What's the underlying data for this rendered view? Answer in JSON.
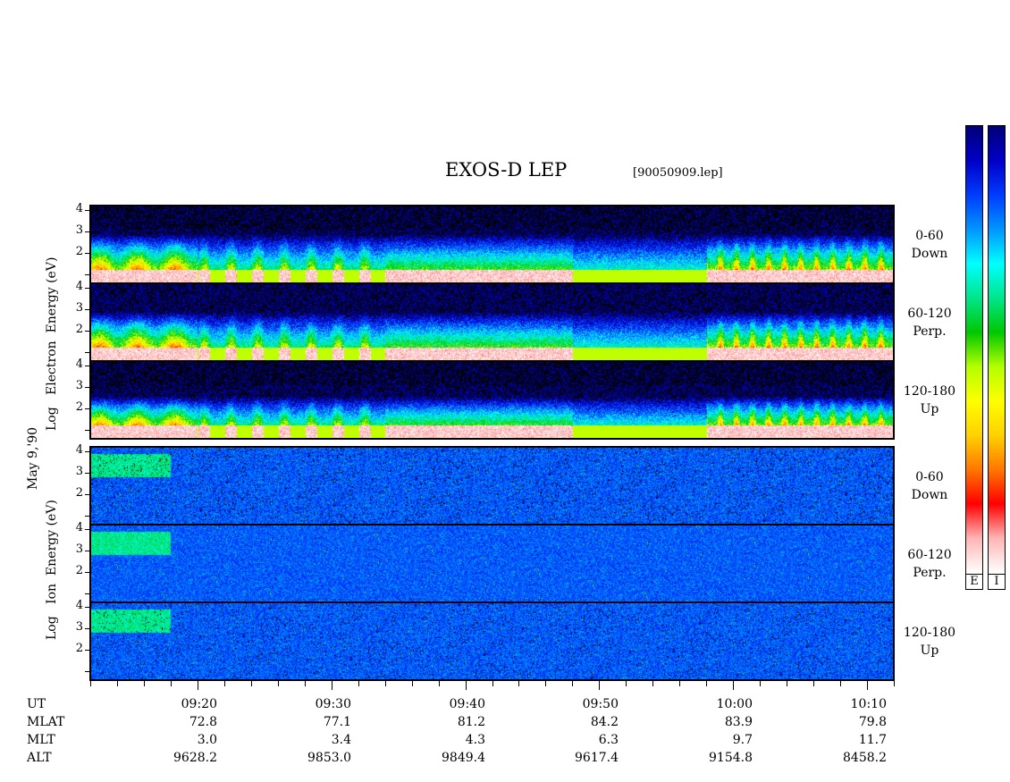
{
  "header": {
    "title": "EXOS-D LEP",
    "file": "[90050909.lep]"
  },
  "y_axis": {
    "date_label": "May  9,'90",
    "electron_label": [
      "Log",
      "Electron",
      "Energy",
      "(eV)"
    ],
    "ion_label": [
      "Log",
      "Ion",
      "Energy",
      "(eV)"
    ],
    "tick_labels": [
      "1",
      "2",
      "3",
      "4"
    ]
  },
  "panels": [
    {
      "species": "Electron",
      "pitch_range": "0-60",
      "direction": "Down"
    },
    {
      "species": "Electron",
      "pitch_range": "60-120",
      "direction": "Perp."
    },
    {
      "species": "Electron",
      "pitch_range": "120-180",
      "direction": "Up"
    },
    {
      "species": "Ion",
      "pitch_range": "0-60",
      "direction": "Down"
    },
    {
      "species": "Ion",
      "pitch_range": "60-120",
      "direction": "Perp."
    },
    {
      "species": "Ion",
      "pitch_range": "120-180",
      "direction": "Up"
    }
  ],
  "ephemeris": {
    "row_labels": [
      "UT",
      "MLAT",
      "MLT",
      "ALT"
    ],
    "columns": [
      {
        "UT": "09:20",
        "MLAT": "72.8",
        "MLT": "3.0",
        "ALT": "9628.2"
      },
      {
        "UT": "09:30",
        "MLAT": "77.1",
        "MLT": "3.4",
        "ALT": "9853.0"
      },
      {
        "UT": "09:40",
        "MLAT": "81.2",
        "MLT": "4.3",
        "ALT": "9849.4"
      },
      {
        "UT": "09:50",
        "MLAT": "84.2",
        "MLT": "6.3",
        "ALT": "9617.4"
      },
      {
        "UT": "10:00",
        "MLAT": "83.9",
        "MLT": "9.7",
        "ALT": "9154.8"
      },
      {
        "UT": "10:10",
        "MLAT": "79.8",
        "MLT": "11.7",
        "ALT": "8458.2"
      }
    ]
  },
  "colorbar": {
    "labels": [
      "E",
      "I"
    ]
  },
  "chart_data": {
    "type": "heatmap",
    "title": "EXOS-D LEP",
    "x": {
      "label": "UT",
      "start": "09:12",
      "end": "10:12",
      "ticks": [
        "09:20",
        "09:30",
        "09:40",
        "09:50",
        "10:00",
        "10:10"
      ]
    },
    "y": {
      "ylim": [
        0.6,
        4.2
      ],
      "ticks": [
        1,
        2,
        3,
        4
      ],
      "scale": "log energy (eV)"
    },
    "electron_series": [
      {
        "label": "0-60 Down",
        "intensity": "high",
        "floor": 0.55
      },
      {
        "label": "60-120 Perp.",
        "intensity": "high",
        "floor": 0.55
      },
      {
        "label": "120-180 Up",
        "intensity": "high",
        "floor": 0.45
      }
    ],
    "ion_series": [
      {
        "label": "0-60 Down",
        "intensity": "low"
      },
      {
        "label": "60-120 Perp.",
        "intensity": "low"
      },
      {
        "label": "120-180 Up",
        "intensity": "low"
      }
    ],
    "colormap": [
      "#ffffff",
      "#ff0000",
      "#ffa500",
      "#ffff00",
      "#00cc00",
      "#00ffff",
      "#0044ff",
      "#00008b"
    ]
  }
}
